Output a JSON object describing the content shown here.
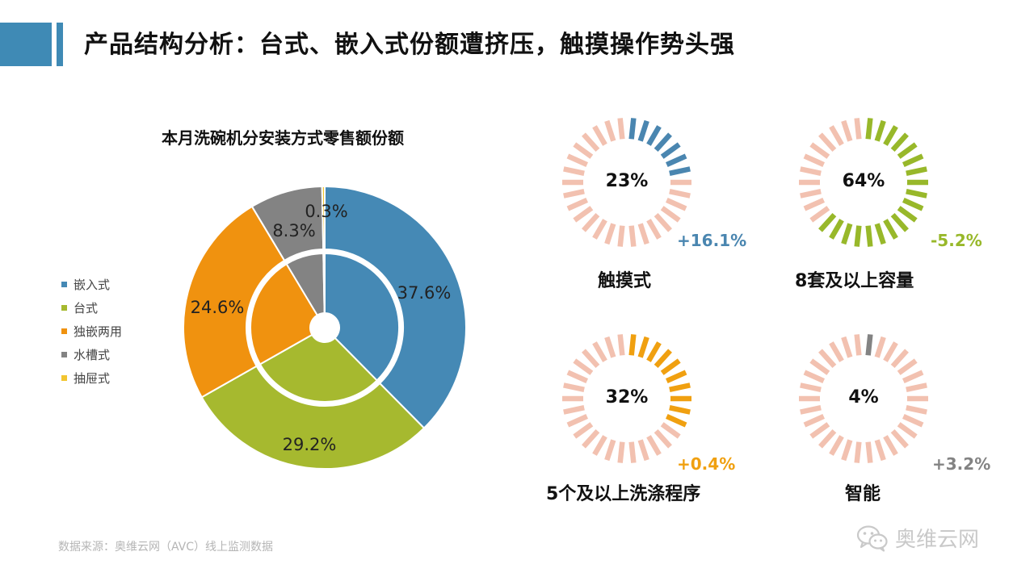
{
  "title": "产品结构分析：台式、嵌入式份额遭挤压，触摸操作势头强",
  "colors": {
    "band": "#3f8ab5",
    "embedded": "#4589b5",
    "tabletop": "#a6b92f",
    "standalone": "#f0920f",
    "sink": "#838383",
    "drawer": "#f2c530",
    "tick_inactive": "#f2c1b0"
  },
  "chart_data": [
    {
      "type": "pie",
      "variant": "double-donut",
      "title": "本月洗碗机分安装方式零售额份额",
      "legend_position": "left",
      "series": [
        {
          "name": "嵌入式",
          "value": 37.6,
          "label": "37.6%",
          "color": "#4589b5"
        },
        {
          "name": "台式",
          "value": 29.2,
          "label": "29.2%",
          "color": "#a6b92f"
        },
        {
          "name": "独嵌两用",
          "value": 24.6,
          "label": "24.6%",
          "color": "#f0920f"
        },
        {
          "name": "水槽式",
          "value": 8.3,
          "label": "8.3%",
          "color": "#838383"
        },
        {
          "name": "抽屉式",
          "value": 0.3,
          "label": "0.3%",
          "color": "#f2c530"
        }
      ]
    },
    {
      "type": "gauge",
      "variant": "tick-ring",
      "tick_count": 30,
      "items": [
        {
          "name": "触摸式",
          "value": 23,
          "value_label": "23%",
          "change": "+16.1%",
          "color": "#4a86b0"
        },
        {
          "name": "8套及以上容量",
          "value": 64,
          "value_label": "64%",
          "change": "-5.2%",
          "color": "#98b82a"
        },
        {
          "name": "5个及以上洗涤程序",
          "value": 32,
          "value_label": "32%",
          "change": "+0.4%",
          "color": "#f0a010"
        },
        {
          "name": "智能",
          "value": 4,
          "value_label": "4%",
          "change": "+3.2%",
          "color": "#838383"
        }
      ]
    }
  ],
  "source": "数据来源：奥维云网（AVC）线上监测数据",
  "watermark": {
    "text": "奥维云网",
    "icon": "wechat-icon"
  }
}
